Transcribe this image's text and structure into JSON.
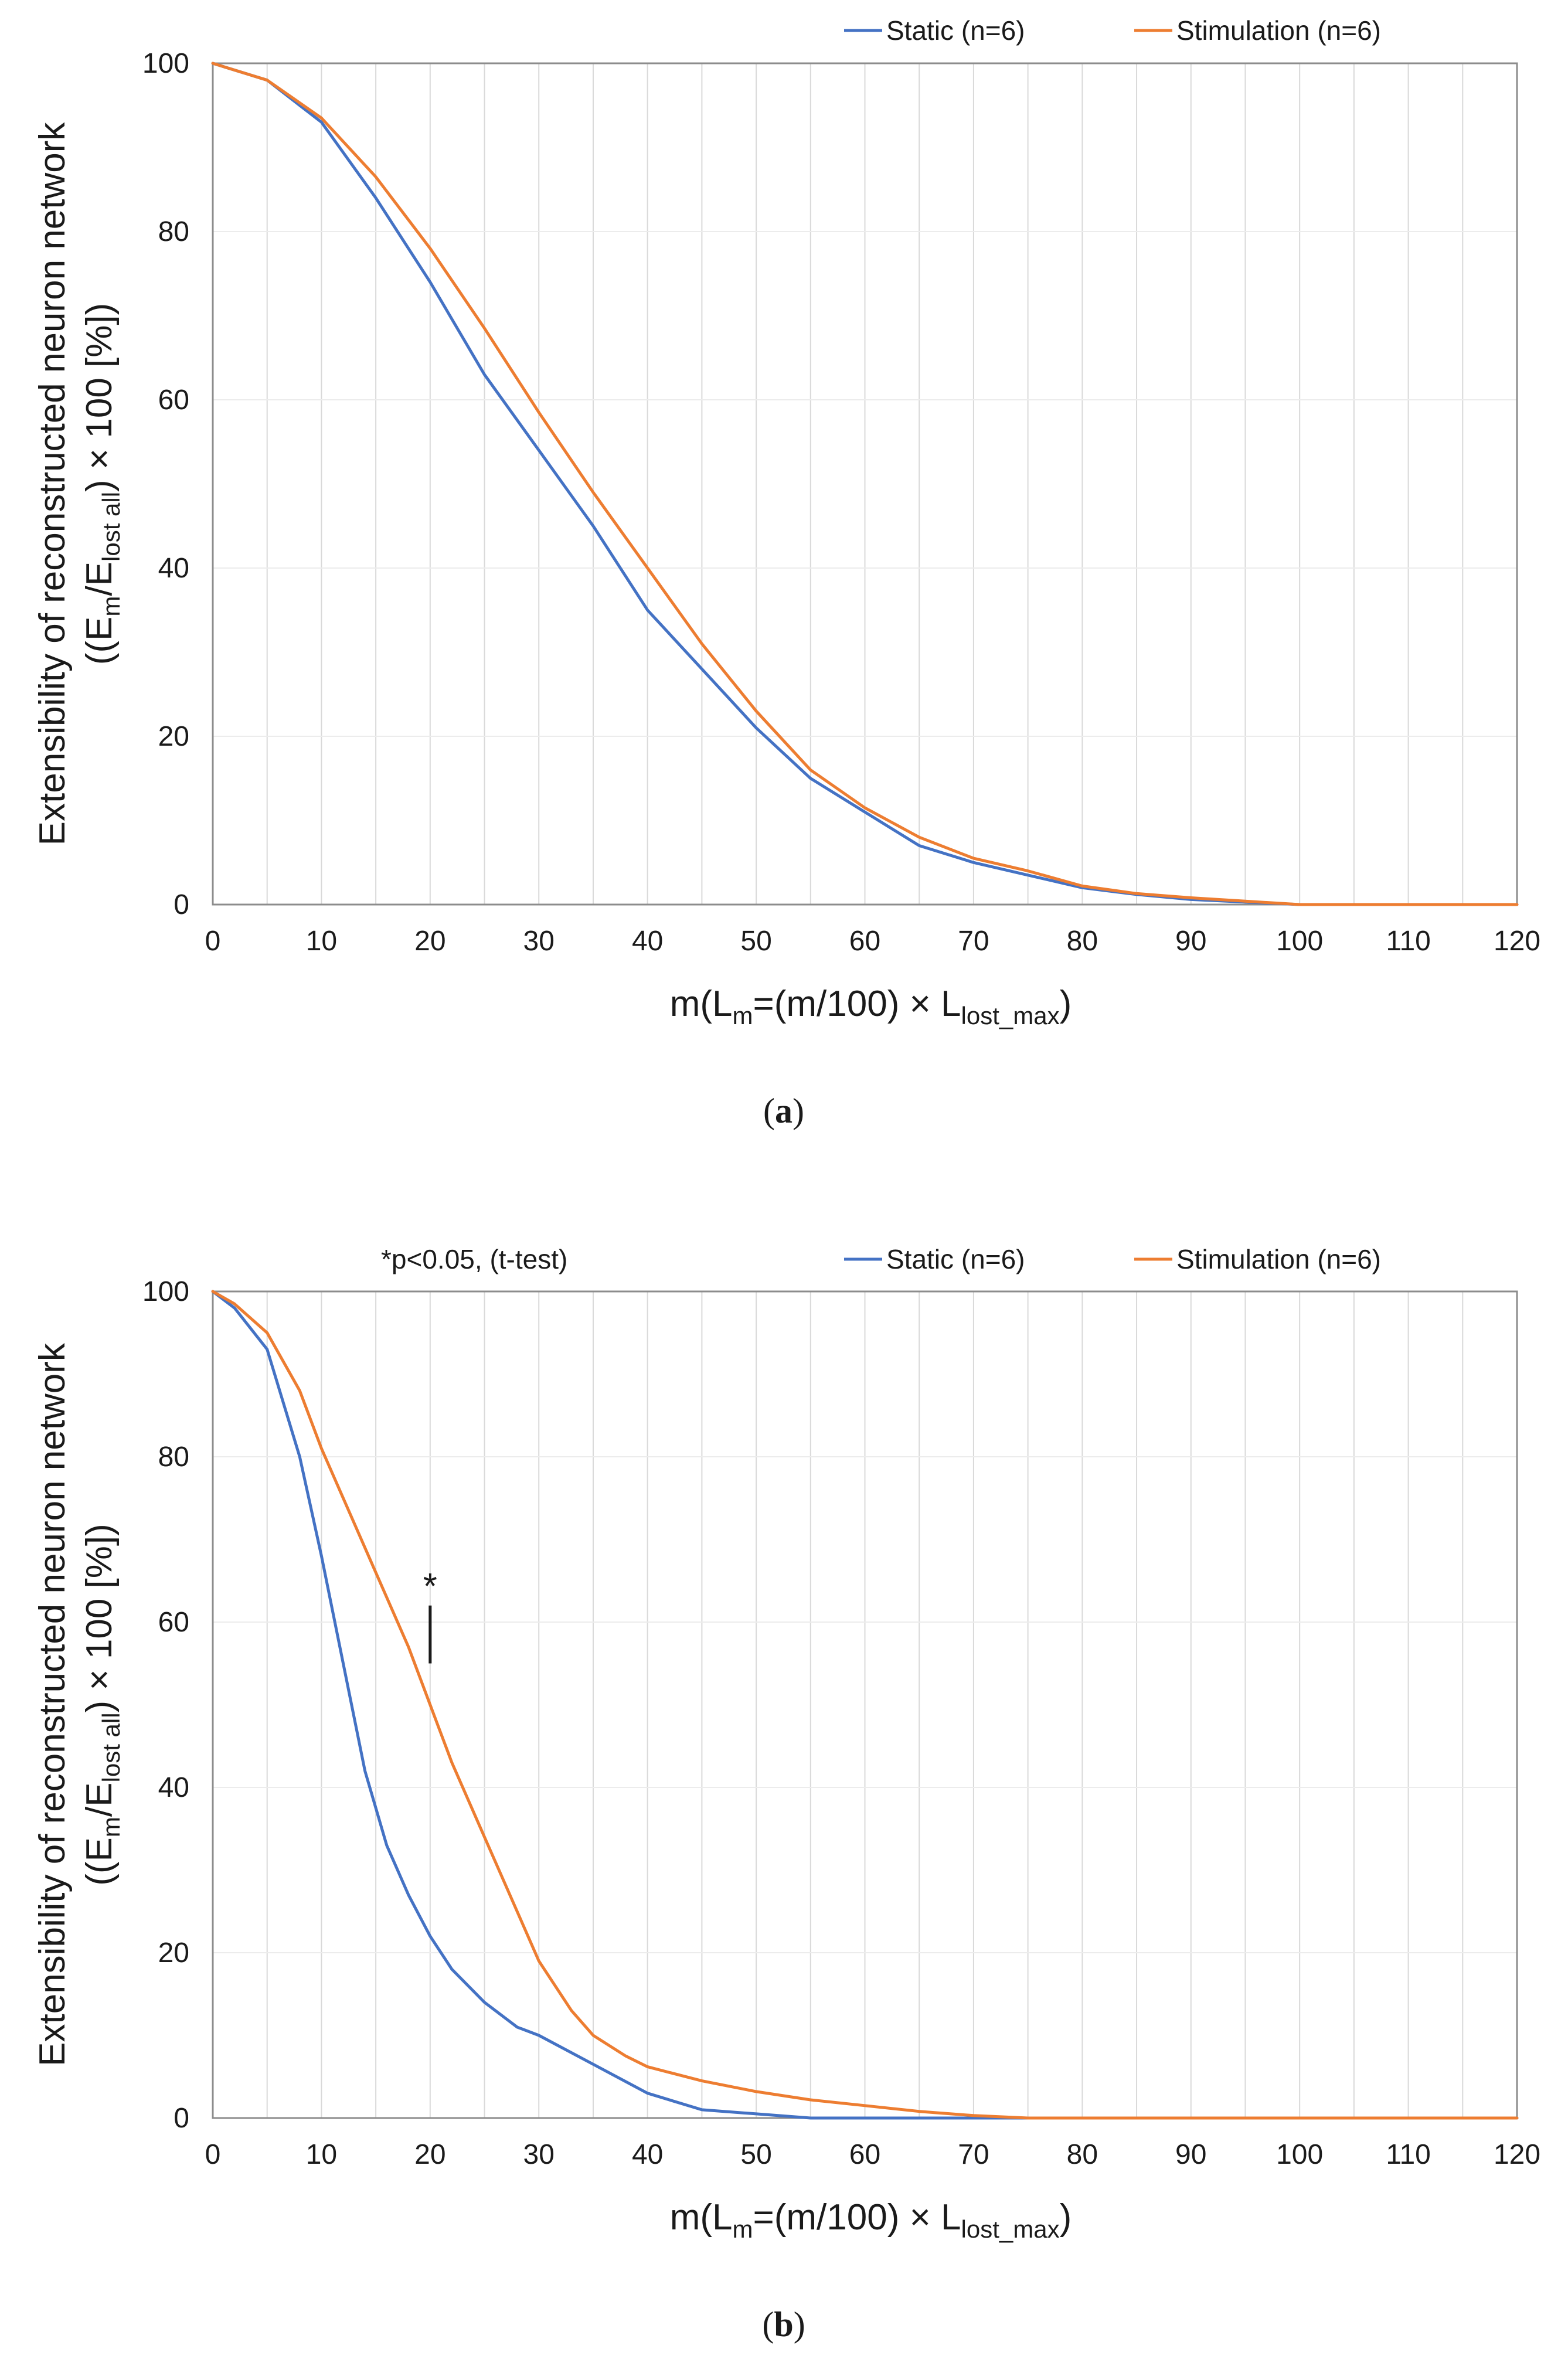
{
  "colors": {
    "static": "#4472c4",
    "stimulation": "#ed7d31",
    "grid": "#d9d9d9",
    "axis": "#8c8c8c"
  },
  "axis_text": {
    "y_line1": "Extensibility of reconstructed neuron network",
    "y_line2_open": "((E",
    "y_sub_m": "m",
    "y_slash": "/E",
    "y_sub_lost": "lost all",
    "y_tail": ") × 100 [%])",
    "x_open": "m(L",
    "x_sub_m": "m",
    "x_mid": "=(m/100) × L",
    "x_sub_lost": "lost_max",
    "x_close": ")"
  },
  "chart_data": [
    {
      "type": "line",
      "caption": "a",
      "xlim": [
        0,
        120
      ],
      "ylim": [
        0,
        100
      ],
      "xticks": [
        0,
        10,
        20,
        30,
        40,
        50,
        60,
        70,
        80,
        90,
        100,
        110,
        120
      ],
      "yticks": [
        0,
        20,
        40,
        60,
        80,
        100
      ],
      "grid": "vertical",
      "legend": "top-right",
      "annotation": "",
      "series": [
        {
          "name": "Static (n=6)",
          "x": [
            0,
            5,
            10,
            15,
            20,
            25,
            30,
            35,
            40,
            45,
            50,
            55,
            60,
            65,
            70,
            75,
            80,
            85,
            90,
            95,
            100,
            110,
            120
          ],
          "y": [
            100,
            98,
            93,
            84,
            74,
            63,
            54,
            45,
            35,
            28,
            21,
            15,
            11,
            7,
            5,
            3.5,
            2,
            1.2,
            0.6,
            0.3,
            0,
            0,
            0
          ]
        },
        {
          "name": "Stimulation (n=6)",
          "x": [
            0,
            5,
            10,
            15,
            20,
            25,
            30,
            35,
            40,
            45,
            50,
            55,
            60,
            65,
            70,
            75,
            80,
            85,
            90,
            95,
            100,
            110,
            120
          ],
          "y": [
            100,
            98,
            93.5,
            86.5,
            78,
            68.5,
            58.5,
            49,
            40,
            31,
            23,
            16,
            11.5,
            8,
            5.5,
            4,
            2.2,
            1.3,
            0.8,
            0.4,
            0,
            0,
            0
          ]
        }
      ]
    },
    {
      "type": "line",
      "caption": "b",
      "xlim": [
        0,
        120
      ],
      "ylim": [
        0,
        100
      ],
      "xticks": [
        0,
        10,
        20,
        30,
        40,
        50,
        60,
        70,
        80,
        90,
        100,
        110,
        120
      ],
      "yticks": [
        0,
        20,
        40,
        60,
        80,
        100
      ],
      "grid": "vertical",
      "legend": "top-right",
      "annotation": "*p<0.05, (t-test)",
      "significance": {
        "x": 20,
        "y_from": 55,
        "y_to": 62,
        "label": "*"
      },
      "series": [
        {
          "name": "Static (n=6)",
          "x": [
            0,
            2,
            5,
            8,
            10,
            12,
            14,
            16,
            18,
            20,
            22,
            25,
            28,
            30,
            35,
            40,
            45,
            50,
            55,
            60,
            70,
            80,
            90,
            100,
            110,
            120
          ],
          "y": [
            100,
            98,
            93,
            80,
            68,
            55,
            42,
            33,
            27,
            22,
            18,
            14,
            11,
            10,
            6.5,
            3,
            1,
            0.5,
            0,
            0,
            0,
            0,
            0,
            0,
            0,
            0
          ]
        },
        {
          "name": "Stimulation (n=6)",
          "x": [
            0,
            2,
            5,
            8,
            10,
            15,
            18,
            20,
            22,
            25,
            28,
            30,
            33,
            35,
            38,
            40,
            45,
            50,
            55,
            60,
            65,
            70,
            75,
            80,
            90,
            100,
            110,
            120
          ],
          "y": [
            100,
            98.5,
            95,
            88,
            81,
            66,
            57,
            50,
            43,
            34,
            25,
            19,
            13,
            10,
            7.5,
            6.2,
            4.5,
            3.2,
            2.2,
            1.5,
            0.8,
            0.3,
            0,
            0,
            0,
            0,
            0,
            0
          ]
        }
      ]
    }
  ]
}
